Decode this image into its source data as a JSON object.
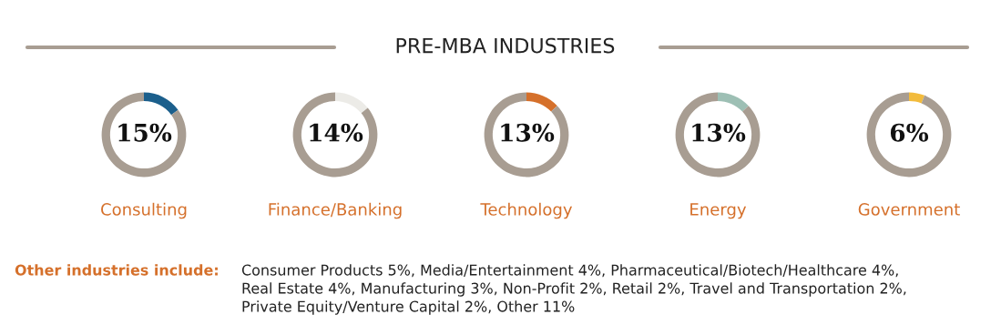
{
  "chart_data": [
    {
      "type": "donut",
      "title": "Consulting",
      "categories": [
        null,
        null
      ],
      "values": [
        15,
        85
      ],
      "colors": [
        "#1b5f8c",
        "#a89d92"
      ],
      "value_labels": [
        "15%",
        null
      ]
    },
    {
      "type": "donut",
      "title": "Finance/Banking",
      "categories": [
        null,
        null
      ],
      "values": [
        14,
        86
      ],
      "colors": [
        "#ecebe7",
        "#a89d92"
      ],
      "value_labels": [
        "14%",
        null
      ]
    },
    {
      "type": "donut",
      "title": "Technology",
      "categories": [
        null,
        null
      ],
      "values": [
        13,
        87
      ],
      "colors": [
        "#d5702b",
        "#a89d92"
      ],
      "value_labels": [
        "13%",
        null
      ]
    },
    {
      "type": "donut",
      "title": "Energy",
      "categories": [
        null,
        null
      ],
      "values": [
        13,
        87
      ],
      "colors": [
        "#9dbfb4",
        "#a89d92"
      ],
      "value_labels": [
        "13%",
        null
      ]
    },
    {
      "type": "donut",
      "title": "Government",
      "categories": [
        null,
        null
      ],
      "values": [
        6,
        94
      ],
      "colors": [
        "#f2bb3c",
        "#a89d92"
      ],
      "value_labels": [
        "6%",
        null
      ]
    },
    {
      "type": "other",
      "title": "PRE-MBA INDUSTRIES",
      "annotations": [
        "Other industries include:",
        "Consumer Products 5%, Media/Entertainment 4%, Pharmaceutical/Biotech/Healthcare 4%,",
        "Real Estate 4%, Manufacturing 3%, Non-Profit 2%, Retail 2%, Travel and Transportation 2%,",
        "Private Equity/Venture Capital 2%, Other 11%"
      ]
    }
  ]
}
